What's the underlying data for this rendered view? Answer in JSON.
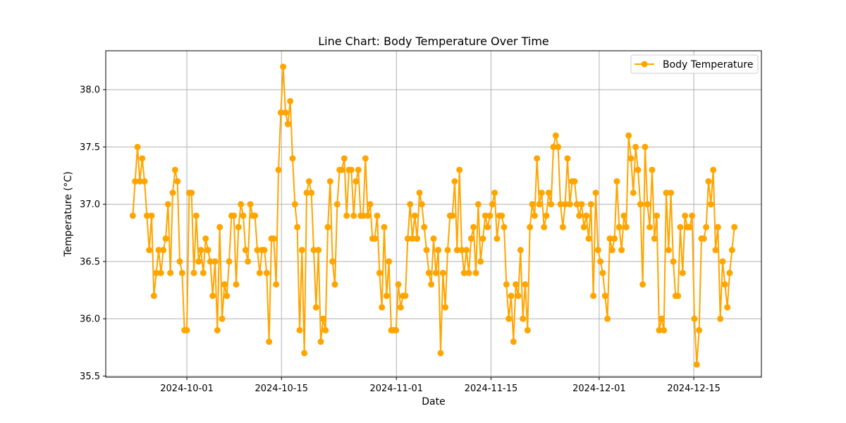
{
  "chart_data": {
    "type": "line",
    "title": "Line Chart: Body Temperature Over Time",
    "xlabel": "Date",
    "ylabel": "Temperature (°C)",
    "x_start": "2024-09-23",
    "x_end": "2024-12-21",
    "xlim": [
      "2024-09-19",
      "2024-12-25"
    ],
    "ylim": [
      35.49,
      38.34
    ],
    "x_ticks": [
      "2024-10-01",
      "2024-10-15",
      "2024-11-01",
      "2024-11-15",
      "2024-12-01",
      "2024-12-15"
    ],
    "y_ticks": [
      35.5,
      36.0,
      36.5,
      37.0,
      37.5,
      38.0
    ],
    "y_tick_labels": [
      "35.5",
      "36.0",
      "36.5",
      "37.0",
      "37.5",
      "38.0"
    ],
    "grid": true,
    "legend_position": "top-right",
    "color": "#FFA500",
    "series": [
      {
        "name": "Body Temperature",
        "values": [
          36.9,
          37.2,
          37.5,
          37.2,
          37.4,
          37.2,
          36.9,
          36.6,
          36.9,
          36.2,
          36.4,
          36.6,
          36.4,
          36.6,
          36.7,
          37.0,
          36.4,
          37.1,
          37.3,
          37.2,
          36.5,
          36.4,
          35.9,
          35.9,
          37.1,
          37.1,
          36.4,
          36.9,
          36.5,
          36.6,
          36.4,
          36.7,
          36.6,
          36.5,
          36.2,
          36.5,
          35.9,
          36.8,
          36.0,
          36.3,
          36.2,
          36.5,
          36.9,
          36.9,
          36.3,
          36.8,
          37.0,
          36.9,
          36.6,
          36.5,
          37.0,
          36.9,
          36.9,
          36.6,
          36.4,
          36.6,
          36.6,
          36.4,
          35.8,
          36.7,
          36.7,
          36.3,
          37.3,
          37.8,
          38.2,
          37.8,
          37.7,
          37.9,
          37.4,
          37.0,
          36.8,
          35.9,
          36.6,
          35.7,
          37.1,
          37.2,
          37.1,
          36.6,
          36.1,
          36.6,
          35.8,
          36.0,
          35.9,
          36.8,
          37.2,
          36.5,
          36.3,
          37.0,
          37.3,
          37.3,
          37.4,
          36.9,
          37.3,
          37.3,
          36.9,
          37.2,
          37.3,
          36.9,
          36.9,
          37.4,
          36.9,
          37.0,
          36.7,
          36.7,
          36.9,
          36.4,
          36.1,
          36.8,
          36.2,
          36.5,
          35.9,
          35.9,
          35.9,
          36.3,
          36.1,
          36.2,
          36.2,
          36.7,
          37.0,
          36.7,
          36.9,
          36.7,
          37.1,
          37.0,
          36.8,
          36.6,
          36.4,
          36.3,
          36.7,
          36.4,
          36.6,
          35.7,
          36.4,
          36.1,
          36.6,
          36.9,
          36.9,
          37.2,
          36.6,
          37.3,
          36.6,
          36.4,
          36.6,
          36.4,
          36.7,
          36.8,
          36.4,
          37.0,
          36.5,
          36.7,
          36.9,
          36.8,
          36.9,
          37.0,
          37.1,
          36.7,
          36.9,
          36.9,
          36.8,
          36.3,
          36.0,
          36.2,
          35.8,
          36.3,
          36.2,
          36.6,
          36.0,
          36.3,
          35.9,
          36.8,
          37.0,
          36.9,
          37.4,
          37.0,
          37.1,
          36.8,
          36.9,
          37.1,
          37.0,
          37.5,
          37.6,
          37.5,
          37.0,
          36.8,
          37.0,
          37.4,
          37.0,
          37.2,
          37.2,
          37.0,
          36.9,
          37.0,
          36.8,
          36.9,
          36.7,
          37.0,
          36.2,
          37.1,
          36.6,
          36.5,
          36.4,
          36.2,
          36.0,
          36.7,
          36.6,
          36.7,
          37.2,
          36.8,
          36.6,
          36.9,
          36.8,
          37.6,
          37.4,
          37.1,
          37.5,
          37.3,
          37.0,
          36.3,
          37.5,
          37.0,
          36.8,
          37.3,
          36.7,
          36.9,
          35.9,
          36.0,
          35.9,
          37.1,
          36.6,
          37.1,
          36.5,
          36.2,
          36.2,
          36.8,
          36.4,
          36.9,
          36.8,
          36.8,
          36.9,
          36.0,
          35.6,
          35.9,
          36.7,
          36.7,
          36.8,
          37.2,
          37.0,
          37.3,
          36.6,
          36.8,
          36.0,
          36.5,
          36.3,
          36.1,
          36.4,
          36.6,
          36.8
        ]
      }
    ]
  }
}
